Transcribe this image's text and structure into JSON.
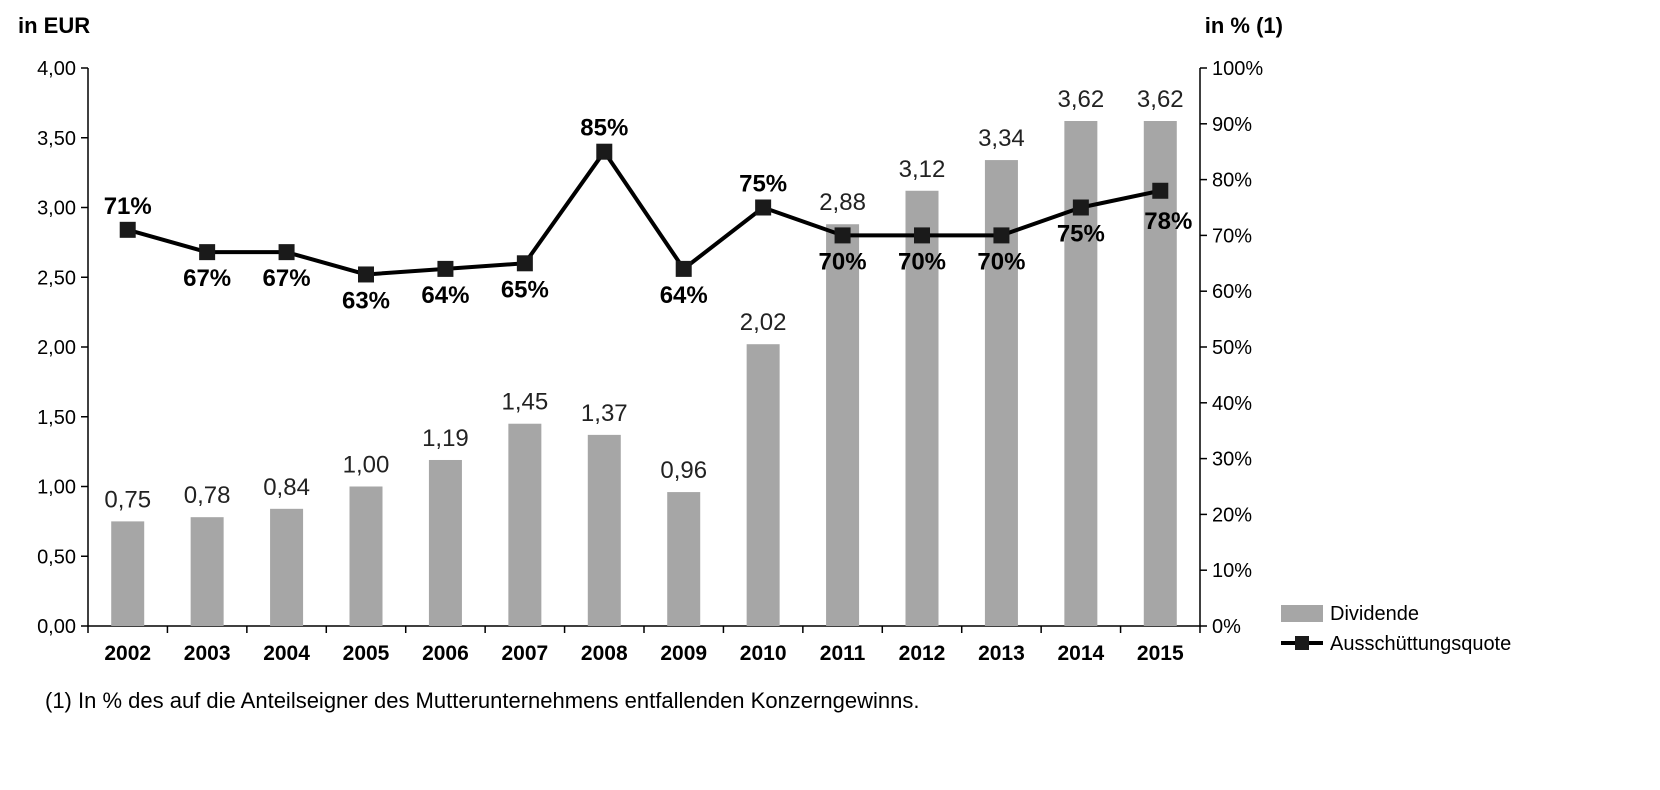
{
  "chart_data": {
    "type": "bar",
    "left_axis_title": "in EUR",
    "right_axis_title": "in % (1)",
    "categories": [
      "2002",
      "2003",
      "2004",
      "2005",
      "2006",
      "2007",
      "2008",
      "2009",
      "2010",
      "2011",
      "2012",
      "2013",
      "2014",
      "2015"
    ],
    "left_ticks": [
      "0,00",
      "0,50",
      "1,00",
      "1,50",
      "2,00",
      "2,50",
      "3,00",
      "3,50",
      "4,00"
    ],
    "right_ticks": [
      "0%",
      "10%",
      "20%",
      "30%",
      "40%",
      "50%",
      "60%",
      "70%",
      "80%",
      "90%",
      "100%"
    ],
    "ylim_left": [
      0,
      4
    ],
    "ylim_right": [
      0,
      100
    ],
    "series": [
      {
        "name": "Dividende",
        "type": "bar",
        "axis": "left",
        "color": "#a6a6a6",
        "values": [
          0.75,
          0.78,
          0.84,
          1.0,
          1.19,
          1.45,
          1.37,
          0.96,
          2.02,
          2.88,
          3.12,
          3.34,
          3.62,
          3.62
        ],
        "labels": [
          "0,75",
          "0,78",
          "0,84",
          "1,00",
          "1,19",
          "1,45",
          "1,37",
          "0,96",
          "2,02",
          "2,88",
          "3,12",
          "3,34",
          "3,62",
          "3,62"
        ]
      },
      {
        "name": "Ausschüttungsquote",
        "type": "line",
        "axis": "right",
        "color": "#000000",
        "marker": "square",
        "values": [
          71,
          67,
          67,
          63,
          64,
          65,
          85,
          64,
          75,
          70,
          70,
          70,
          75,
          78
        ],
        "labels": [
          "71%",
          "67%",
          "67%",
          "63%",
          "64%",
          "65%",
          "85%",
          "64%",
          "75%",
          "70%",
          "70%",
          "70%",
          "75%",
          "78%"
        ]
      }
    ],
    "legend_position": "bottom-right",
    "footnote": "(1) In % des auf die Anteilseigner des Mutterunternehmens entfallenden Konzerngewinns."
  }
}
